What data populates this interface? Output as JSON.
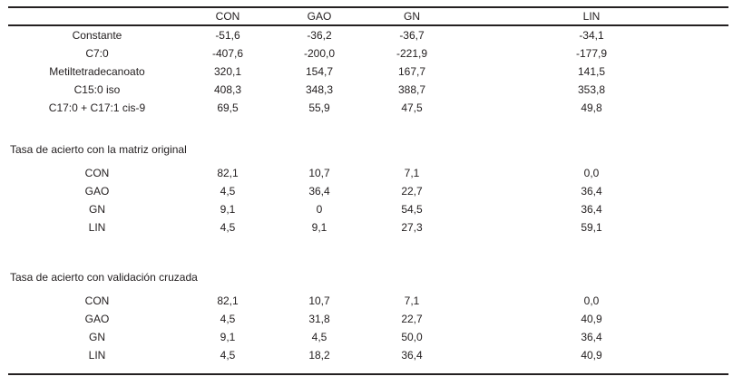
{
  "table": {
    "corner_label": "",
    "columns": [
      "CON",
      "GAO",
      "GN",
      "LIN"
    ],
    "coefficient_rows": [
      {
        "label": "Constante",
        "values": [
          "-51,6",
          "-36,2",
          "-36,7",
          "-34,1"
        ]
      },
      {
        "label": "C7:0",
        "values": [
          "-407,6",
          "-200,0",
          "-221,9",
          "-177,9"
        ]
      },
      {
        "label": "Metiltetradecanoato",
        "values": [
          "320,1",
          "154,7",
          "167,7",
          "141,5"
        ]
      },
      {
        "label": "C15:0 iso",
        "values": [
          "408,3",
          "348,3",
          "388,7",
          "353,8"
        ]
      },
      {
        "label": "C17:0 + C17:1 cis-9",
        "values": [
          "69,5",
          "55,9",
          "47,5",
          "49,8"
        ]
      }
    ],
    "sections": [
      {
        "title": "Tasa de acierto con la matriz original",
        "rows": [
          {
            "label": "CON",
            "values": [
              "82,1",
              "10,7",
              "7,1",
              "0,0"
            ]
          },
          {
            "label": "GAO",
            "values": [
              "4,5",
              "36,4",
              "22,7",
              "36,4"
            ]
          },
          {
            "label": "GN",
            "values": [
              "9,1",
              "0",
              "54,5",
              "36,4"
            ]
          },
          {
            "label": "LIN",
            "values": [
              "4,5",
              "9,1",
              "27,3",
              "59,1"
            ]
          }
        ]
      },
      {
        "title": "Tasa de acierto con validación cruzada",
        "rows": [
          {
            "label": "CON",
            "values": [
              "82,1",
              "10,7",
              "7,1",
              "0,0"
            ]
          },
          {
            "label": "GAO",
            "values": [
              "4,5",
              "31,8",
              "22,7",
              "40,9"
            ]
          },
          {
            "label": "GN",
            "values": [
              "9,1",
              "4,5",
              "50,0",
              "36,4"
            ]
          },
          {
            "label": "LIN",
            "values": [
              "4,5",
              "18,2",
              "36,4",
              "40,9"
            ]
          }
        ]
      }
    ],
    "colors": {
      "text": "#242021",
      "rule": "#242021",
      "background": "#ffffff"
    }
  }
}
